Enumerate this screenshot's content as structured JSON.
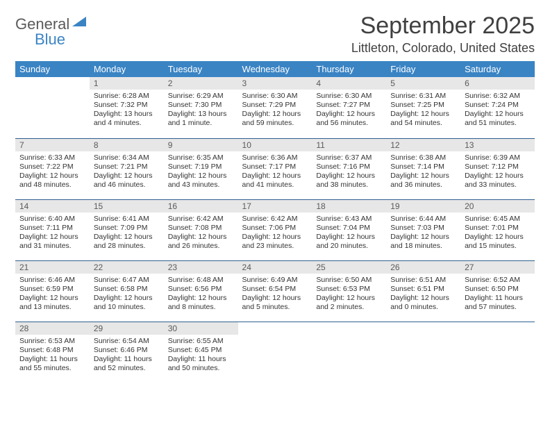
{
  "logo": {
    "line1": "General",
    "line2": "Blue"
  },
  "title": "September 2025",
  "location": "Littleton, Colorado, United States",
  "style": {
    "header_bg": "#3a84c4",
    "header_fg": "#ffffff",
    "daynum_bg": "#e7e7e7",
    "daynum_fg": "#5a5a5a",
    "row_border": "#2f5f8f",
    "body_text": "#333333",
    "page_bg": "#ffffff",
    "month_title_fontsize": 34,
    "location_fontsize": 18,
    "header_fontsize": 13,
    "daynum_fontsize": 12,
    "cell_fontsize": 10.5
  },
  "columns": [
    "Sunday",
    "Monday",
    "Tuesday",
    "Wednesday",
    "Thursday",
    "Friday",
    "Saturday"
  ],
  "weeks": [
    [
      null,
      {
        "n": "1",
        "sr": "Sunrise: 6:28 AM",
        "ss": "Sunset: 7:32 PM",
        "dl": "Daylight: 13 hours and 4 minutes."
      },
      {
        "n": "2",
        "sr": "Sunrise: 6:29 AM",
        "ss": "Sunset: 7:30 PM",
        "dl": "Daylight: 13 hours and 1 minute."
      },
      {
        "n": "3",
        "sr": "Sunrise: 6:30 AM",
        "ss": "Sunset: 7:29 PM",
        "dl": "Daylight: 12 hours and 59 minutes."
      },
      {
        "n": "4",
        "sr": "Sunrise: 6:30 AM",
        "ss": "Sunset: 7:27 PM",
        "dl": "Daylight: 12 hours and 56 minutes."
      },
      {
        "n": "5",
        "sr": "Sunrise: 6:31 AM",
        "ss": "Sunset: 7:25 PM",
        "dl": "Daylight: 12 hours and 54 minutes."
      },
      {
        "n": "6",
        "sr": "Sunrise: 6:32 AM",
        "ss": "Sunset: 7:24 PM",
        "dl": "Daylight: 12 hours and 51 minutes."
      }
    ],
    [
      {
        "n": "7",
        "sr": "Sunrise: 6:33 AM",
        "ss": "Sunset: 7:22 PM",
        "dl": "Daylight: 12 hours and 48 minutes."
      },
      {
        "n": "8",
        "sr": "Sunrise: 6:34 AM",
        "ss": "Sunset: 7:21 PM",
        "dl": "Daylight: 12 hours and 46 minutes."
      },
      {
        "n": "9",
        "sr": "Sunrise: 6:35 AM",
        "ss": "Sunset: 7:19 PM",
        "dl": "Daylight: 12 hours and 43 minutes."
      },
      {
        "n": "10",
        "sr": "Sunrise: 6:36 AM",
        "ss": "Sunset: 7:17 PM",
        "dl": "Daylight: 12 hours and 41 minutes."
      },
      {
        "n": "11",
        "sr": "Sunrise: 6:37 AM",
        "ss": "Sunset: 7:16 PM",
        "dl": "Daylight: 12 hours and 38 minutes."
      },
      {
        "n": "12",
        "sr": "Sunrise: 6:38 AM",
        "ss": "Sunset: 7:14 PM",
        "dl": "Daylight: 12 hours and 36 minutes."
      },
      {
        "n": "13",
        "sr": "Sunrise: 6:39 AM",
        "ss": "Sunset: 7:12 PM",
        "dl": "Daylight: 12 hours and 33 minutes."
      }
    ],
    [
      {
        "n": "14",
        "sr": "Sunrise: 6:40 AM",
        "ss": "Sunset: 7:11 PM",
        "dl": "Daylight: 12 hours and 31 minutes."
      },
      {
        "n": "15",
        "sr": "Sunrise: 6:41 AM",
        "ss": "Sunset: 7:09 PM",
        "dl": "Daylight: 12 hours and 28 minutes."
      },
      {
        "n": "16",
        "sr": "Sunrise: 6:42 AM",
        "ss": "Sunset: 7:08 PM",
        "dl": "Daylight: 12 hours and 26 minutes."
      },
      {
        "n": "17",
        "sr": "Sunrise: 6:42 AM",
        "ss": "Sunset: 7:06 PM",
        "dl": "Daylight: 12 hours and 23 minutes."
      },
      {
        "n": "18",
        "sr": "Sunrise: 6:43 AM",
        "ss": "Sunset: 7:04 PM",
        "dl": "Daylight: 12 hours and 20 minutes."
      },
      {
        "n": "19",
        "sr": "Sunrise: 6:44 AM",
        "ss": "Sunset: 7:03 PM",
        "dl": "Daylight: 12 hours and 18 minutes."
      },
      {
        "n": "20",
        "sr": "Sunrise: 6:45 AM",
        "ss": "Sunset: 7:01 PM",
        "dl": "Daylight: 12 hours and 15 minutes."
      }
    ],
    [
      {
        "n": "21",
        "sr": "Sunrise: 6:46 AM",
        "ss": "Sunset: 6:59 PM",
        "dl": "Daylight: 12 hours and 13 minutes."
      },
      {
        "n": "22",
        "sr": "Sunrise: 6:47 AM",
        "ss": "Sunset: 6:58 PM",
        "dl": "Daylight: 12 hours and 10 minutes."
      },
      {
        "n": "23",
        "sr": "Sunrise: 6:48 AM",
        "ss": "Sunset: 6:56 PM",
        "dl": "Daylight: 12 hours and 8 minutes."
      },
      {
        "n": "24",
        "sr": "Sunrise: 6:49 AM",
        "ss": "Sunset: 6:54 PM",
        "dl": "Daylight: 12 hours and 5 minutes."
      },
      {
        "n": "25",
        "sr": "Sunrise: 6:50 AM",
        "ss": "Sunset: 6:53 PM",
        "dl": "Daylight: 12 hours and 2 minutes."
      },
      {
        "n": "26",
        "sr": "Sunrise: 6:51 AM",
        "ss": "Sunset: 6:51 PM",
        "dl": "Daylight: 12 hours and 0 minutes."
      },
      {
        "n": "27",
        "sr": "Sunrise: 6:52 AM",
        "ss": "Sunset: 6:50 PM",
        "dl": "Daylight: 11 hours and 57 minutes."
      }
    ],
    [
      {
        "n": "28",
        "sr": "Sunrise: 6:53 AM",
        "ss": "Sunset: 6:48 PM",
        "dl": "Daylight: 11 hours and 55 minutes."
      },
      {
        "n": "29",
        "sr": "Sunrise: 6:54 AM",
        "ss": "Sunset: 6:46 PM",
        "dl": "Daylight: 11 hours and 52 minutes."
      },
      {
        "n": "30",
        "sr": "Sunrise: 6:55 AM",
        "ss": "Sunset: 6:45 PM",
        "dl": "Daylight: 11 hours and 50 minutes."
      },
      null,
      null,
      null,
      null
    ]
  ]
}
